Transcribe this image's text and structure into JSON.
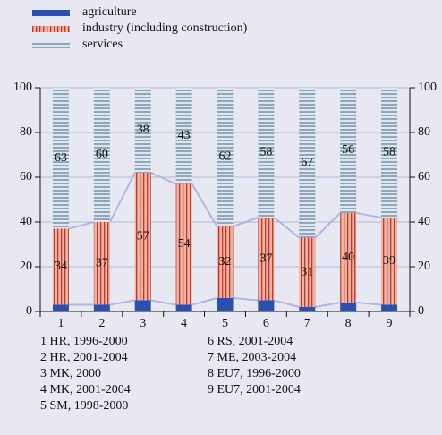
{
  "chart_data": {
    "type": "stacked_bar",
    "categories": [
      "1",
      "2",
      "3",
      "4",
      "5",
      "6",
      "7",
      "8",
      "9"
    ],
    "series": [
      {
        "name": "agriculture",
        "color": "#2b4fb0",
        "values": [
          3,
          3,
          5,
          3,
          6,
          5,
          2,
          4,
          3
        ]
      },
      {
        "name": "industry (including construction)",
        "color": "#e9a391",
        "values": [
          34,
          37,
          57,
          54,
          32,
          37,
          31,
          40,
          39
        ],
        "value_labels": [
          "34",
          "37",
          "57",
          "54",
          "32",
          "37",
          "31",
          "40",
          "39"
        ]
      },
      {
        "name": "services",
        "color": "#a8bccf",
        "values": [
          63,
          60,
          38,
          43,
          62,
          58,
          67,
          56,
          58
        ],
        "value_labels": [
          "63",
          "60",
          "38",
          "43",
          "62",
          "58",
          "67",
          "56",
          "58"
        ]
      }
    ],
    "ylim": [
      0,
      100
    ],
    "yticks": [
      0,
      20,
      40,
      60,
      80,
      100
    ],
    "y2ticks": [
      0,
      20,
      40,
      60,
      80,
      100
    ],
    "grid": true,
    "notes": [
      "1 HR, 1996-2000",
      "2 HR, 2001-2004",
      "3 MK, 2000",
      "4 MK, 2001-2004",
      "5 SM, 1998-2000",
      "6 RS, 2001-2004",
      "7 ME, 2003-2004",
      "8 EU7, 1996-2000",
      "9 EU7, 2001-2004"
    ]
  }
}
